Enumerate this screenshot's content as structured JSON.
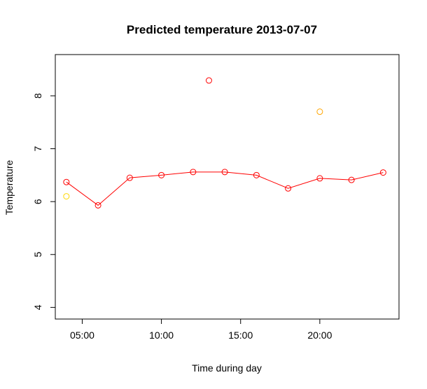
{
  "chart_data": {
    "type": "line",
    "title": "Predicted temperature  2013-07-07",
    "xlabel": "Time during day",
    "ylabel": "Temperature",
    "x_unit": "hour of day",
    "xlim": [
      3.3,
      25.0
    ],
    "ylim": [
      3.78,
      8.78
    ],
    "x_ticks": [
      {
        "value": 5,
        "label": "05:00"
      },
      {
        "value": 10,
        "label": "10:00"
      },
      {
        "value": 15,
        "label": "15:00"
      },
      {
        "value": 20,
        "label": "20:00"
      }
    ],
    "y_ticks": [
      {
        "value": 4,
        "label": "4"
      },
      {
        "value": 5,
        "label": "5"
      },
      {
        "value": 6,
        "label": "6"
      },
      {
        "value": 7,
        "label": "7"
      },
      {
        "value": 8,
        "label": "8"
      }
    ],
    "grid": false,
    "series": [
      {
        "color": "#ff0000",
        "style": "line+points",
        "points": [
          {
            "x": 4,
            "y": 6.37
          },
          {
            "x": 6,
            "y": 5.93
          },
          {
            "x": 8,
            "y": 6.45
          },
          {
            "x": 10,
            "y": 6.5
          },
          {
            "x": 12,
            "y": 6.56
          },
          {
            "x": 14,
            "y": 6.56
          },
          {
            "x": 16,
            "y": 6.5
          },
          {
            "x": 18,
            "y": 6.25
          },
          {
            "x": 20,
            "y": 6.44
          },
          {
            "x": 22,
            "y": 6.41
          },
          {
            "x": 24,
            "y": 6.55
          }
        ]
      },
      {
        "color": "#ff0000",
        "style": "points",
        "points": [
          {
            "x": 13,
            "y": 8.29
          }
        ]
      },
      {
        "color": "#ffa500",
        "style": "points",
        "points": [
          {
            "x": 20,
            "y": 7.7
          }
        ]
      },
      {
        "color": "#ffd700",
        "style": "points",
        "points": [
          {
            "x": 4,
            "y": 6.1
          }
        ]
      }
    ]
  }
}
